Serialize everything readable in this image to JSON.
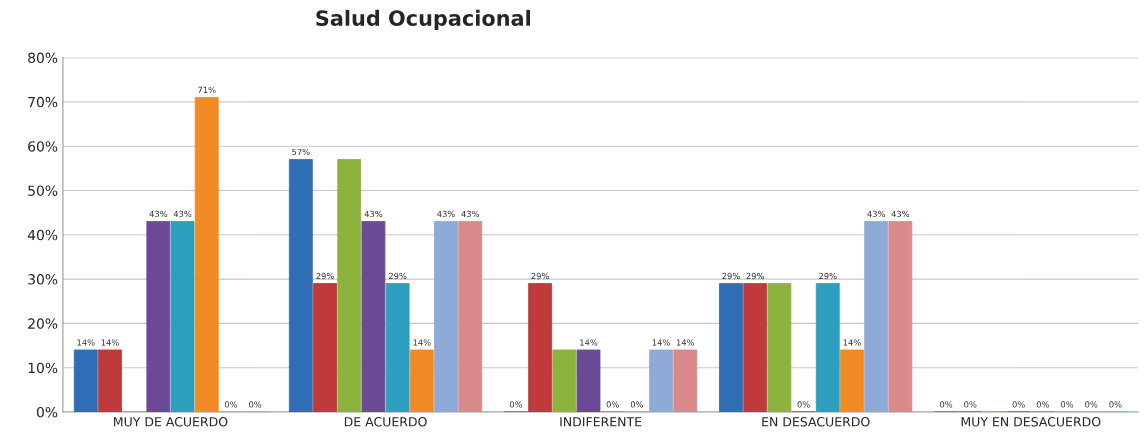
{
  "chart_data": {
    "type": "bar",
    "title": "Salud Ocupacional",
    "categories": [
      "MUY DE ACUERDO",
      "DE ACUERDO",
      "INDIFERENTE",
      "EN DESACUERDO",
      "MUY EN DESACUERDO"
    ],
    "series": [
      {
        "color": "#2f6db5",
        "values": [
          14,
          57,
          0,
          29,
          0
        ],
        "value_labels": [
          "14%",
          "57%",
          "0%",
          "29%",
          "0%"
        ]
      },
      {
        "color": "#c0393b",
        "values": [
          14,
          29,
          29,
          29,
          0
        ],
        "value_labels": [
          "14%",
          "29%",
          "29%",
          "29%",
          "0%"
        ]
      },
      {
        "color": "#8db33f",
        "values": [
          0,
          57,
          14,
          29,
          0
        ],
        "value_labels": [
          null,
          null,
          null,
          null,
          null
        ]
      },
      {
        "color": "#6b4a96",
        "values": [
          43,
          43,
          14,
          0,
          0
        ],
        "value_labels": [
          "43%",
          "43%",
          "14%",
          "0%",
          "0%"
        ]
      },
      {
        "color": "#2f9fbf",
        "values": [
          43,
          29,
          0,
          29,
          0
        ],
        "value_labels": [
          "43%",
          "29%",
          "0%",
          "29%",
          "0%"
        ]
      },
      {
        "color": "#f08a24",
        "values": [
          71,
          14,
          0,
          14,
          0
        ],
        "value_labels": [
          "71%",
          "14%",
          "0%",
          "14%",
          "0%"
        ]
      },
      {
        "color": "#8eabd8",
        "values": [
          0,
          43,
          14,
          43,
          0
        ],
        "value_labels": [
          "0%",
          "43%",
          "14%",
          "43%",
          "0%"
        ]
      },
      {
        "color": "#d98a8a",
        "values": [
          0,
          43,
          14,
          43,
          0
        ],
        "value_labels": [
          "0%",
          "43%",
          "14%",
          "43%",
          "0%"
        ]
      }
    ],
    "ylim": [
      0,
      80
    ],
    "yticks": [
      {
        "value": 0,
        "label": "0%"
      },
      {
        "value": 10,
        "label": "10%"
      },
      {
        "value": 20,
        "label": "20%"
      },
      {
        "value": 30,
        "label": "30%"
      },
      {
        "value": 40,
        "label": "40%"
      },
      {
        "value": 50,
        "label": "50%"
      },
      {
        "value": 60,
        "label": "60%"
      },
      {
        "value": 70,
        "label": "70%"
      },
      {
        "value": 80,
        "label": "80%"
      }
    ],
    "grid": "y"
  }
}
